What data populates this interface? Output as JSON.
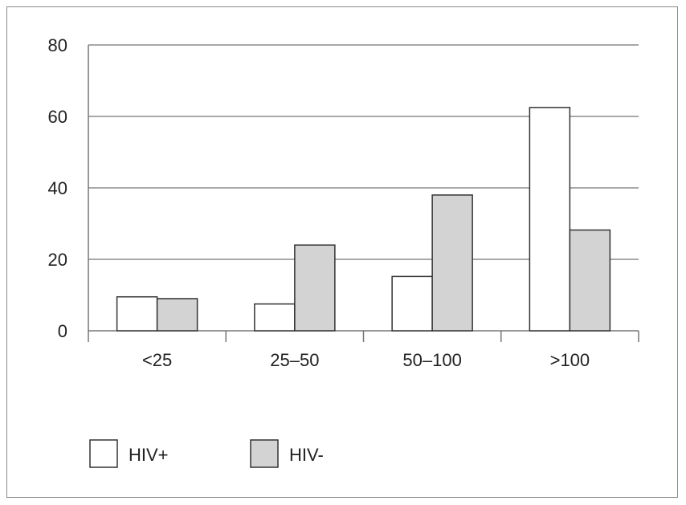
{
  "chart_data": {
    "type": "bar",
    "categories": [
      "<25",
      "25–50",
      "50–100",
      ">100"
    ],
    "series": [
      {
        "name": "HIV+",
        "values": [
          9.5,
          7.5,
          15.2,
          62.5
        ],
        "color": "#ffffff"
      },
      {
        "name": "HIV-",
        "values": [
          9,
          24,
          38,
          28.2
        ],
        "color": "#d3d3d3"
      }
    ],
    "yticks": [
      "0",
      "20",
      "40",
      "60",
      "80"
    ],
    "ylim": [
      0,
      80
    ],
    "grid": true,
    "legend_position": "bottom-left"
  }
}
